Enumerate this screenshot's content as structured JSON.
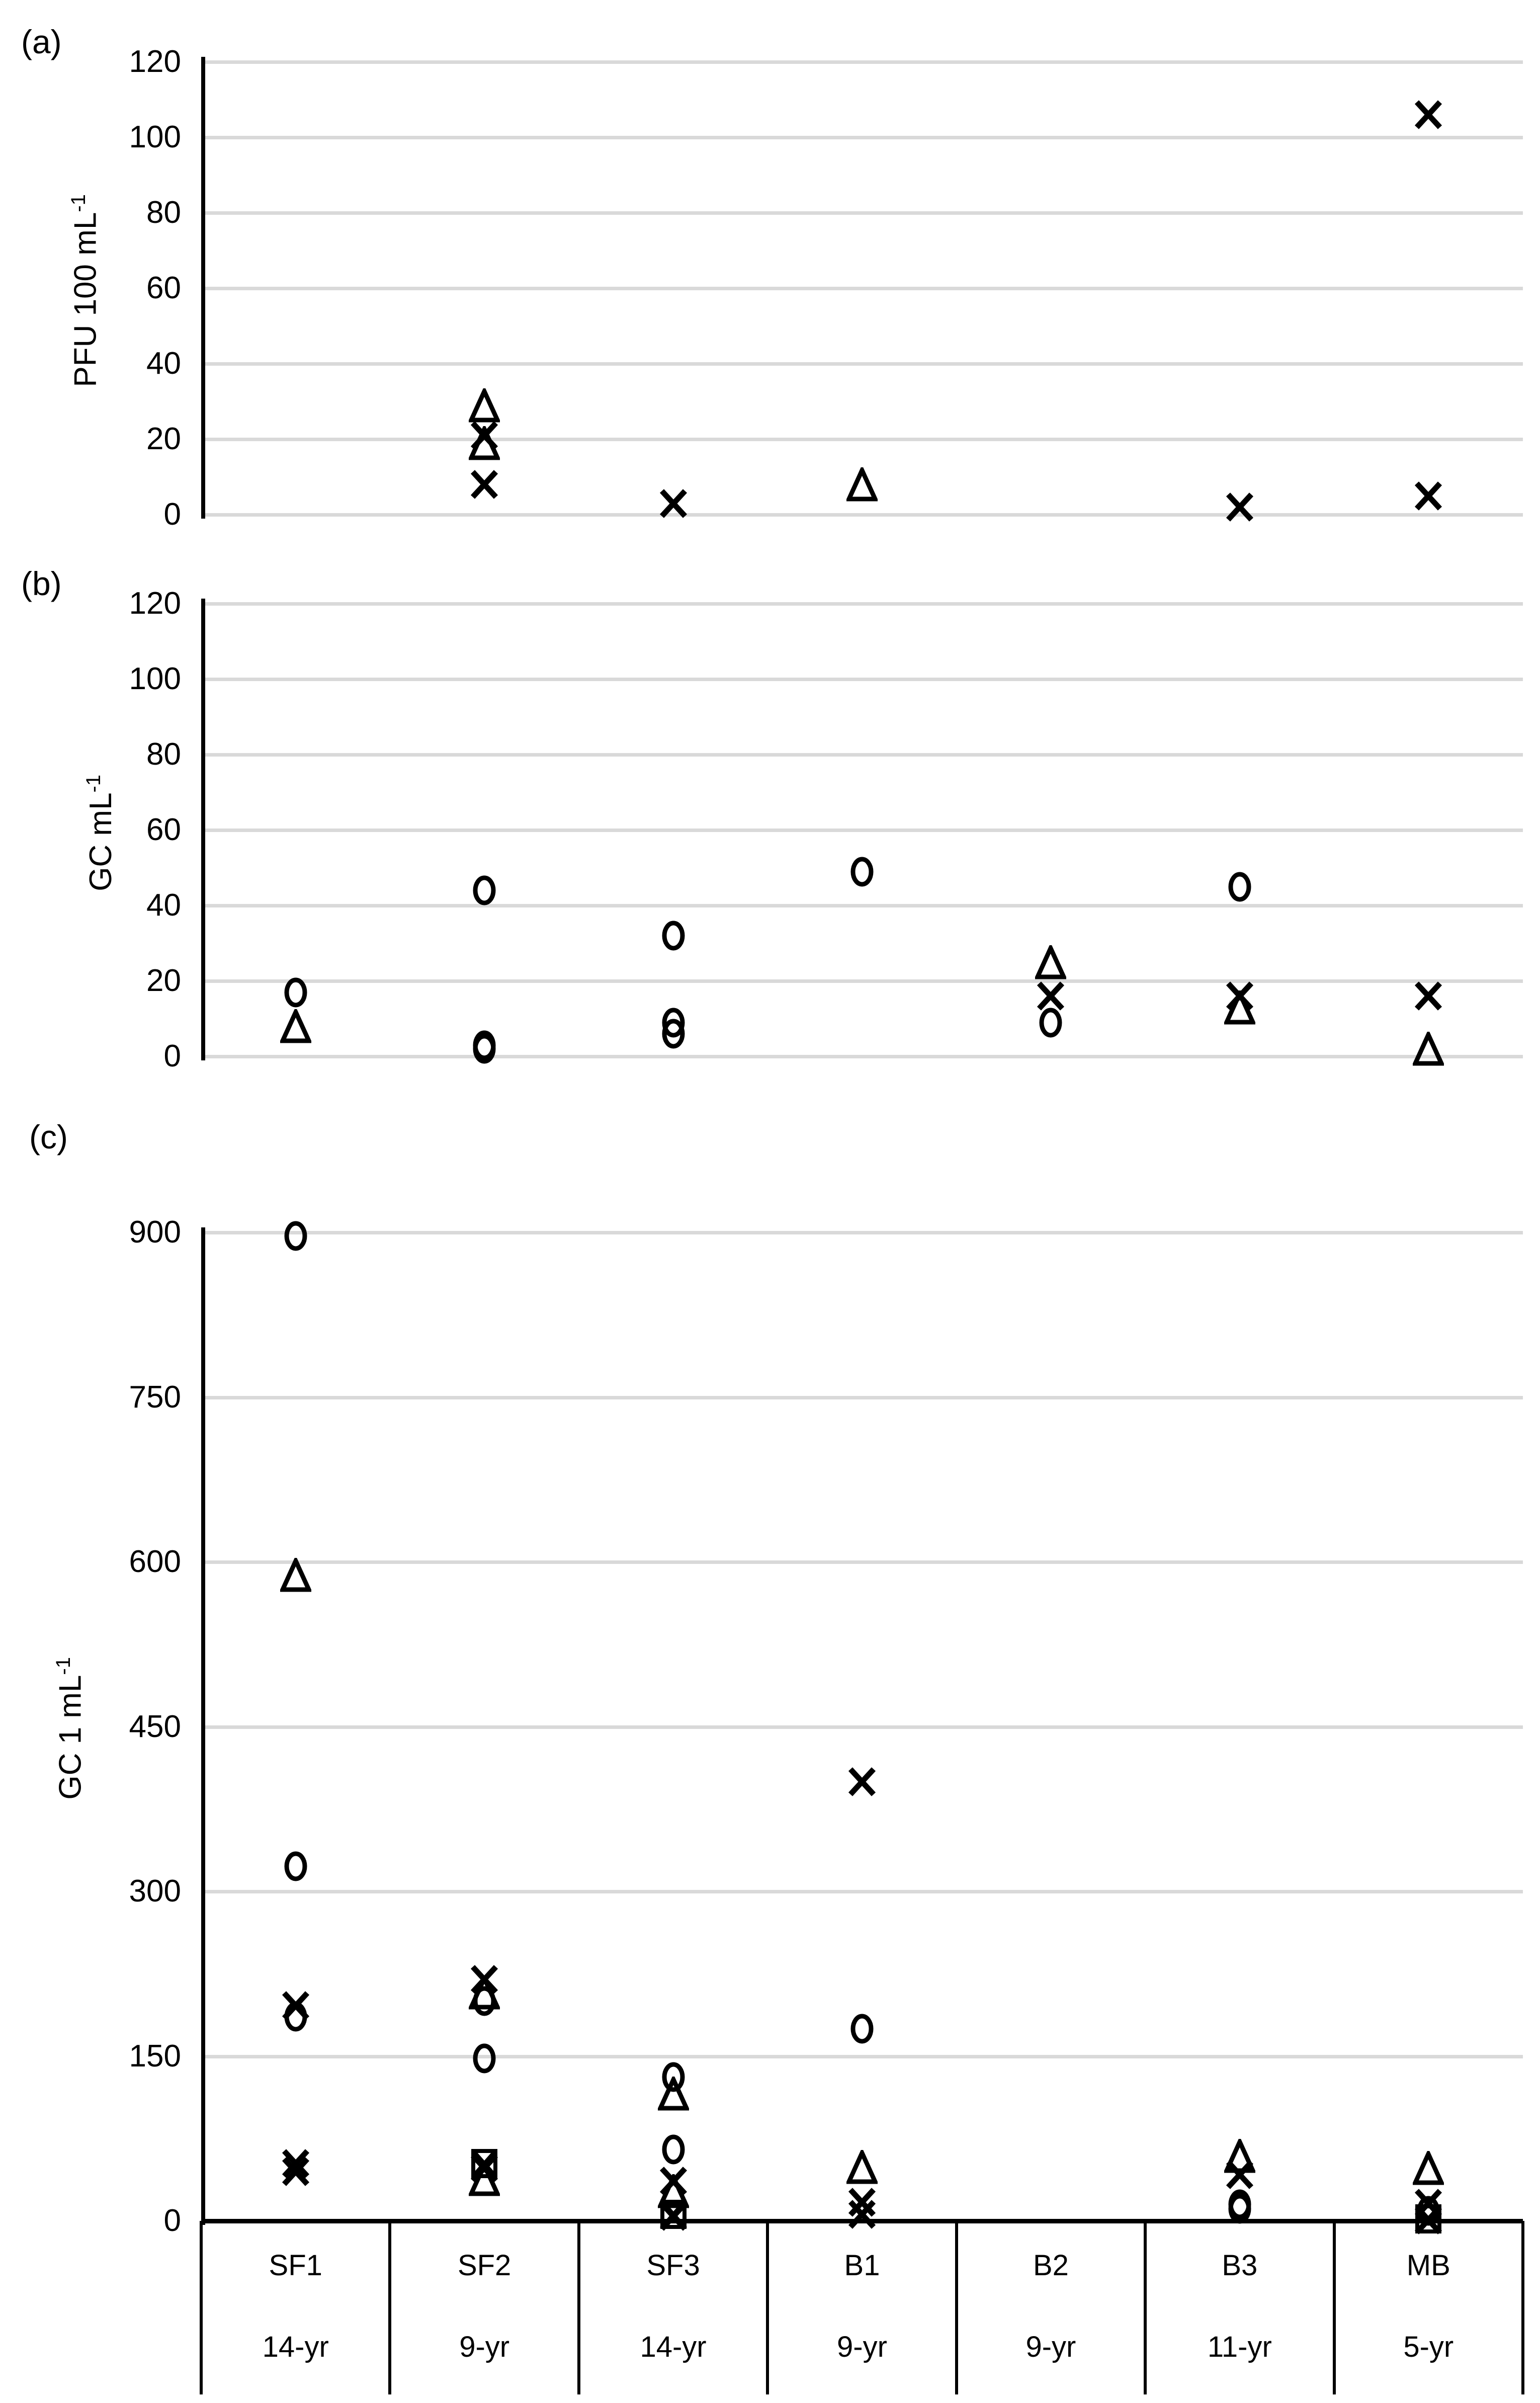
{
  "figure": {
    "background": "#ffffff",
    "colors": {
      "marker": "#000000",
      "gridline": "#d9d9d9",
      "axis": "#000000",
      "text": "#000000"
    },
    "marker_types": [
      "circle",
      "triangle",
      "x",
      "square-x"
    ]
  },
  "chart_data": {
    "type": "scatter",
    "grid": "horizontal-on",
    "legend": "none shown",
    "x_categories_row1": [
      "SF1",
      "SF2",
      "SF3",
      "B1",
      "B2",
      "B3",
      "MB"
    ],
    "x_categories_row2": [
      "14-yr",
      "9-yr",
      "14-yr",
      "9-yr",
      "9-yr",
      "11-yr",
      "5-yr"
    ],
    "categories": [
      {
        "site": "SF1",
        "age": "14-yr"
      },
      {
        "site": "SF2",
        "age": "9-yr"
      },
      {
        "site": "SF3",
        "age": "14-yr"
      },
      {
        "site": "B1",
        "age": "9-yr"
      },
      {
        "site": "B2",
        "age": "9-yr"
      },
      {
        "site": "B3",
        "age": "11-yr"
      },
      {
        "site": "MB",
        "age": "5-yr"
      }
    ],
    "panels": [
      {
        "id": "a",
        "label": "(a)",
        "ylabel": "PFU 100 mL",
        "ylabel_sup": "-1",
        "ylim": [
          0,
          120
        ],
        "yticks": [
          "0",
          "20",
          "40",
          "60",
          "80",
          "100",
          "120"
        ],
        "ytick_values": [
          0,
          20,
          40,
          60,
          80,
          100,
          120
        ],
        "points": [
          {
            "category": "SF2",
            "marker": "triangle",
            "value": 29
          },
          {
            "category": "SF2",
            "marker": "x",
            "value": 21
          },
          {
            "category": "SF2",
            "marker": "triangle",
            "value": 19
          },
          {
            "category": "SF2",
            "marker": "x",
            "value": 8
          },
          {
            "category": "SF3",
            "marker": "x",
            "value": 3
          },
          {
            "category": "B1",
            "marker": "triangle",
            "value": 8
          },
          {
            "category": "B3",
            "marker": "x",
            "value": 2
          },
          {
            "category": "MB",
            "marker": "x",
            "value": 106
          },
          {
            "category": "MB",
            "marker": "x",
            "value": 5
          }
        ]
      },
      {
        "id": "b",
        "label": "(b)",
        "ylabel": "GC mL",
        "ylabel_sup": "-1",
        "ylim": [
          0,
          120
        ],
        "yticks": [
          "0",
          "20",
          "40",
          "60",
          "80",
          "100",
          "120"
        ],
        "ytick_values": [
          0,
          20,
          40,
          60,
          80,
          100,
          120
        ],
        "points": [
          {
            "category": "SF1",
            "marker": "circle",
            "value": 17
          },
          {
            "category": "SF1",
            "marker": "triangle",
            "value": 8
          },
          {
            "category": "SF2",
            "marker": "circle",
            "value": 44
          },
          {
            "category": "SF2",
            "marker": "circle",
            "value": 3
          },
          {
            "category": "SF2",
            "marker": "circle",
            "value": 2
          },
          {
            "category": "SF3",
            "marker": "circle",
            "value": 32
          },
          {
            "category": "SF3",
            "marker": "circle",
            "value": 9
          },
          {
            "category": "SF3",
            "marker": "circle",
            "value": 6
          },
          {
            "category": "B1",
            "marker": "circle",
            "value": 49
          },
          {
            "category": "B2",
            "marker": "triangle",
            "value": 25
          },
          {
            "category": "B2",
            "marker": "x",
            "value": 16
          },
          {
            "category": "B2",
            "marker": "circle",
            "value": 9
          },
          {
            "category": "B3",
            "marker": "circle",
            "value": 45
          },
          {
            "category": "B3",
            "marker": "x",
            "value": 16
          },
          {
            "category": "B3",
            "marker": "triangle",
            "value": 13
          },
          {
            "category": "MB",
            "marker": "x",
            "value": 16
          },
          {
            "category": "MB",
            "marker": "triangle",
            "value": 2
          }
        ]
      },
      {
        "id": "c",
        "label": "(c)",
        "ylabel": "GC 1 mL",
        "ylabel_sup": "-1",
        "ylim": [
          0,
          900
        ],
        "yticks": [
          "0",
          "150",
          "300",
          "450",
          "600",
          "750",
          "900"
        ],
        "ytick_values": [
          0,
          150,
          300,
          450,
          600,
          750,
          900
        ],
        "points": [
          {
            "category": "SF1",
            "marker": "circle",
            "value": 897
          },
          {
            "category": "SF1",
            "marker": "triangle",
            "value": 588
          },
          {
            "category": "SF1",
            "marker": "circle",
            "value": 323
          },
          {
            "category": "SF1",
            "marker": "x",
            "value": 196
          },
          {
            "category": "SF1",
            "marker": "circle",
            "value": 186
          },
          {
            "category": "SF1",
            "marker": "x",
            "value": 52
          },
          {
            "category": "SF1",
            "marker": "x",
            "value": 45
          },
          {
            "category": "SF2",
            "marker": "x",
            "value": 220
          },
          {
            "category": "SF2",
            "marker": "triangle",
            "value": 208
          },
          {
            "category": "SF2",
            "marker": "circle",
            "value": 200
          },
          {
            "category": "SF2",
            "marker": "circle",
            "value": 148
          },
          {
            "category": "SF2",
            "marker": "square-x",
            "value": 52
          },
          {
            "category": "SF2",
            "marker": "x",
            "value": 48
          },
          {
            "category": "SF2",
            "marker": "triangle",
            "value": 38
          },
          {
            "category": "SF3",
            "marker": "circle",
            "value": 131
          },
          {
            "category": "SF3",
            "marker": "triangle",
            "value": 116
          },
          {
            "category": "SF3",
            "marker": "circle",
            "value": 65
          },
          {
            "category": "SF3",
            "marker": "x",
            "value": 36
          },
          {
            "category": "SF3",
            "marker": "triangle",
            "value": 27
          },
          {
            "category": "SF3",
            "marker": "square-x",
            "value": 6
          },
          {
            "category": "SF3",
            "marker": "x",
            "value": 4
          },
          {
            "category": "B1",
            "marker": "x",
            "value": 400
          },
          {
            "category": "B1",
            "marker": "circle",
            "value": 175
          },
          {
            "category": "B1",
            "marker": "triangle",
            "value": 49
          },
          {
            "category": "B1",
            "marker": "x",
            "value": 17
          },
          {
            "category": "B1",
            "marker": "x",
            "value": 6
          },
          {
            "category": "B3",
            "marker": "triangle",
            "value": 59
          },
          {
            "category": "B3",
            "marker": "x",
            "value": 42
          },
          {
            "category": "B3",
            "marker": "circle",
            "value": 15
          },
          {
            "category": "B3",
            "marker": "circle",
            "value": 11
          },
          {
            "category": "MB",
            "marker": "triangle",
            "value": 48
          },
          {
            "category": "MB",
            "marker": "x",
            "value": 16
          },
          {
            "category": "MB",
            "marker": "circle",
            "value": 9
          },
          {
            "category": "MB",
            "marker": "square-x",
            "value": 2
          },
          {
            "category": "MB",
            "marker": "x",
            "value": 1
          }
        ]
      }
    ]
  }
}
